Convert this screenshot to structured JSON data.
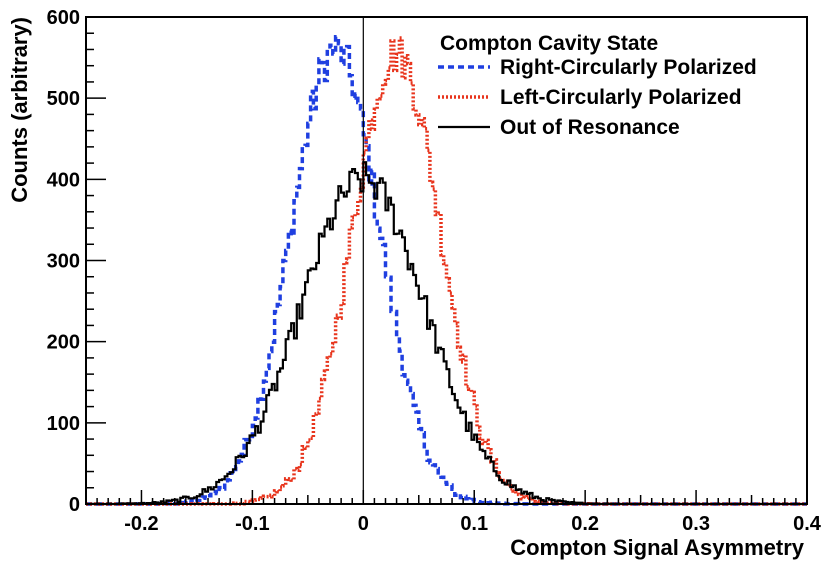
{
  "chart_data": {
    "type": "line",
    "title": "",
    "xlabel": "Compton Signal Asymmetry",
    "ylabel": "Counts (arbitrary)",
    "xlim": [
      -0.25,
      0.4
    ],
    "ylim": [
      0,
      600
    ],
    "xticks": [
      -0.2,
      -0.1,
      0,
      0.1,
      0.2,
      0.3,
      0.4
    ],
    "xtick_labels": [
      "-0.2",
      "-0.1",
      "0",
      "0.1",
      "0.2",
      "0.3",
      "0.4"
    ],
    "yticks": [
      0,
      100,
      200,
      300,
      400,
      500,
      600
    ],
    "ytick_labels": [
      "0",
      "100",
      "200",
      "300",
      "400",
      "500",
      "600"
    ],
    "vertical_reference_line_x": 0,
    "legend": {
      "title": "Compton Cavity State",
      "position": "top-right"
    },
    "series": [
      {
        "name": "Right-Circularly Polarized",
        "color": "#1f3fe0",
        "style": "dashed",
        "mean": -0.025,
        "sigma": 0.04,
        "peak": 560
      },
      {
        "name": "Left-Circularly Polarized",
        "color": "#e8341c",
        "style": "dotted",
        "mean": 0.03,
        "sigma": 0.04,
        "peak": 555
      },
      {
        "name": "Out of Resonance",
        "color": "#000000",
        "style": "solid",
        "mean": 0.0,
        "sigma": 0.056,
        "peak": 400
      }
    ]
  }
}
